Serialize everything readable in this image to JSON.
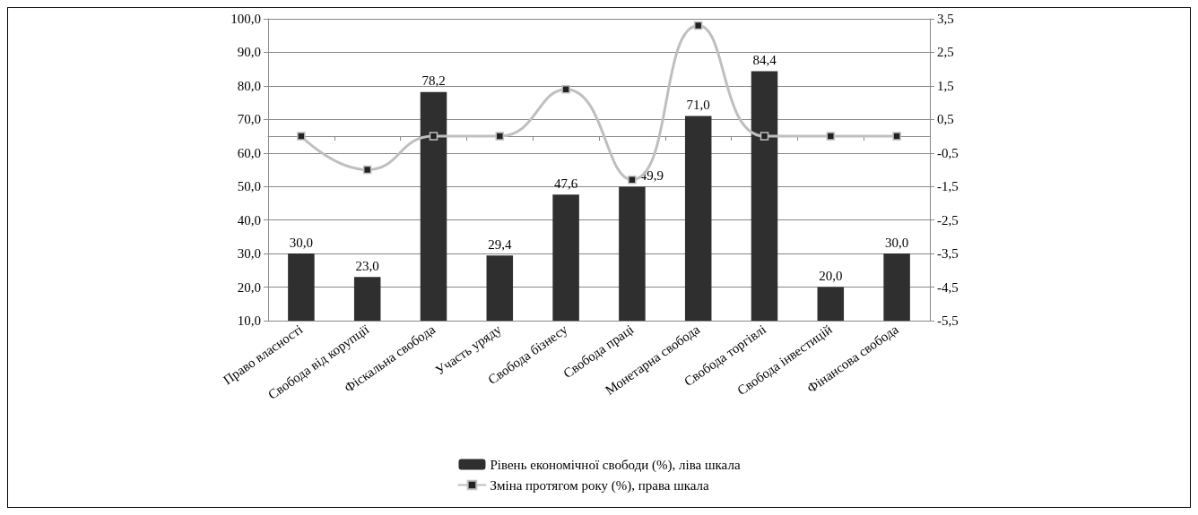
{
  "chart_data": {
    "type": "bar",
    "categories": [
      "Право власності",
      "Свобода від корупції",
      "Фіскальна свобода",
      "Участь уряду",
      "Свобода бізнесу",
      "Свобода праці",
      "Монетарна свобода",
      "Свобода торгівлі",
      "Свобода інвестицій",
      "Фінансова свобода"
    ],
    "series": [
      {
        "name": "Рівень економічної свободи (%), ліва шкала",
        "type": "bar",
        "color": "#2f2f2f",
        "values": [
          30.0,
          23.0,
          78.2,
          29.4,
          47.6,
          49.9,
          71.0,
          84.4,
          20.0,
          30.0
        ],
        "value_labels": [
          "30,0",
          "23,0",
          "78,2",
          "29,4",
          "47,6",
          "49,9",
          "71,0",
          "84,4",
          "20,0",
          "30,0"
        ]
      },
      {
        "name": "Зміна протягом року (%), права шкала",
        "type": "line",
        "axis": "y2",
        "color": "#bfbfbf",
        "marker": "square",
        "values": [
          0.0,
          -1.0,
          0.0,
          0.0,
          1.4,
          -1.3,
          3.3,
          0.0,
          0.0,
          0.0
        ]
      }
    ],
    "ylim": [
      10,
      100
    ],
    "yticks": [
      {
        "value": 10,
        "label": "10,0"
      },
      {
        "value": 20,
        "label": "20,0"
      },
      {
        "value": 30,
        "label": "30,0"
      },
      {
        "value": 40,
        "label": "40,0"
      },
      {
        "value": 50,
        "label": "50,0"
      },
      {
        "value": 60,
        "label": "60,0"
      },
      {
        "value": 70,
        "label": "70,0"
      },
      {
        "value": 80,
        "label": "80,0"
      },
      {
        "value": 90,
        "label": "90,0"
      },
      {
        "value": 100,
        "label": "100,0"
      }
    ],
    "y2lim": [
      -5.5,
      3.5
    ],
    "y2ticks": [
      {
        "value": -5.5,
        "label": "-5,5"
      },
      {
        "value": -4.5,
        "label": "-4,5"
      },
      {
        "value": -3.5,
        "label": "-3,5"
      },
      {
        "value": -2.5,
        "label": "-2,5"
      },
      {
        "value": -1.5,
        "label": "-1,5"
      },
      {
        "value": -0.5,
        "label": "-0,5"
      },
      {
        "value": 0.5,
        "label": "0,5"
      },
      {
        "value": 1.5,
        "label": "1,5"
      },
      {
        "value": 2.5,
        "label": "2,5"
      },
      {
        "value": 3.5,
        "label": "3,5"
      }
    ],
    "grid": "y",
    "legend": "bottom"
  }
}
